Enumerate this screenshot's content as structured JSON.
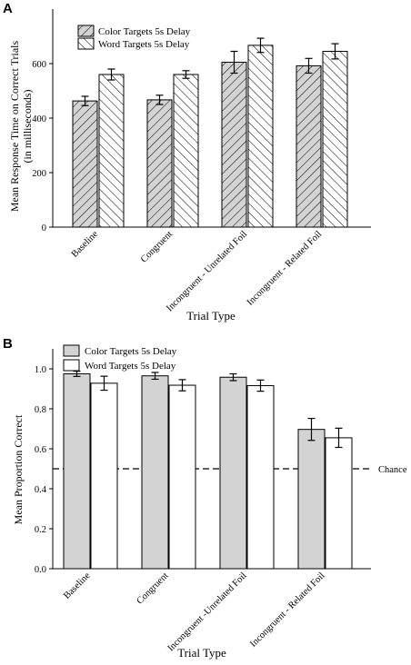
{
  "patterns": {
    "gray": "#d3d3d3",
    "white": "#ffffff",
    "hatch": "#000000"
  },
  "chart_data": [
    {
      "panel": "A",
      "type": "bar",
      "categories": [
        "Baseline",
        "Congruent",
        "Incongruent - Unrelated Foil",
        "Incongruent - Related Foil"
      ],
      "series": [
        {
          "name": "Color Targets 5s Delay",
          "fill": "gray-left-hatch",
          "values": [
            463,
            467,
            605,
            592
          ],
          "errors": [
            17,
            17,
            40,
            27
          ]
        },
        {
          "name": "Word Targets 5s Delay",
          "fill": "white-right-hatch",
          "values": [
            560,
            560,
            667,
            645
          ],
          "errors": [
            20,
            14,
            26,
            28
          ]
        }
      ],
      "xlabel": "Trial Type",
      "ylabel_line1": "Mean Response Time on Correct Trials",
      "ylabel_line2": "(in milliseconds)",
      "ylim": [
        0,
        800
      ],
      "yticks": [
        0,
        200,
        400,
        600
      ],
      "legend_position": "top-left"
    },
    {
      "panel": "B",
      "type": "bar",
      "categories": [
        "Baseline",
        "Congruent",
        "Incongruent -Unrelated Foil",
        "Incongruent - Related Foil"
      ],
      "series": [
        {
          "name": "Color Targets 5s Delay",
          "fill": "gray",
          "values": [
            0.975,
            0.965,
            0.958,
            0.697
          ],
          "errors": [
            0.013,
            0.017,
            0.017,
            0.055
          ]
        },
        {
          "name": "Word Targets 5s Delay",
          "fill": "white",
          "values": [
            0.928,
            0.918,
            0.916,
            0.655
          ],
          "errors": [
            0.035,
            0.028,
            0.028,
            0.048
          ]
        }
      ],
      "xlabel": "Trial Type",
      "ylabel": "Mean Proportion Correct",
      "ylim": [
        0,
        1.1
      ],
      "yticks": [
        0.0,
        0.2,
        0.4,
        0.6,
        0.8,
        1.0
      ],
      "reference_line": {
        "value": 0.5,
        "label": "Chance",
        "style": "dashed"
      },
      "legend_position": "top-left"
    }
  ]
}
